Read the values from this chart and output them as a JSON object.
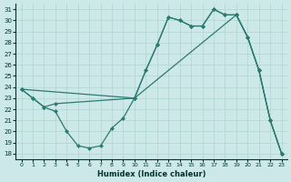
{
  "xlabel": "Humidex (Indice chaleur)",
  "bg_color": "#cce8e8",
  "line_color": "#2d7a72",
  "grid_color": "#b0d4d0",
  "xlim": [
    -0.5,
    23.5
  ],
  "ylim": [
    17.5,
    31.5
  ],
  "yticks": [
    18,
    19,
    20,
    21,
    22,
    23,
    24,
    25,
    26,
    27,
    28,
    29,
    30,
    31
  ],
  "xticks": [
    0,
    1,
    2,
    3,
    4,
    5,
    6,
    7,
    8,
    9,
    10,
    11,
    12,
    13,
    14,
    15,
    16,
    17,
    18,
    19,
    20,
    21,
    22,
    23
  ],
  "line1_x": [
    0,
    1,
    2,
    3,
    4,
    5,
    6,
    7,
    8,
    9,
    10,
    11,
    12,
    13,
    14,
    15,
    16,
    17,
    18,
    19,
    20,
    21,
    22,
    23
  ],
  "line1_y": [
    23.8,
    23.0,
    22.2,
    21.8,
    20.0,
    18.7,
    18.5,
    18.7,
    20.3,
    21.2,
    23.0,
    25.5,
    27.8,
    30.3,
    30.0,
    29.5,
    29.5,
    31.0,
    30.5,
    30.5,
    28.5,
    25.5,
    21.0,
    18.0
  ],
  "line2_x": [
    0,
    1,
    2,
    3,
    10,
    11,
    12,
    13,
    14,
    15,
    16,
    17,
    18,
    19,
    20,
    21,
    22,
    23
  ],
  "line2_y": [
    23.8,
    23.0,
    22.2,
    22.5,
    23.0,
    25.5,
    27.8,
    30.3,
    30.0,
    29.5,
    29.5,
    31.0,
    30.5,
    30.5,
    28.5,
    25.5,
    21.0,
    18.0
  ],
  "line3_x": [
    0,
    10,
    19,
    20,
    21,
    22,
    23
  ],
  "line3_y": [
    23.8,
    23.0,
    30.5,
    28.5,
    25.5,
    21.0,
    18.0
  ]
}
